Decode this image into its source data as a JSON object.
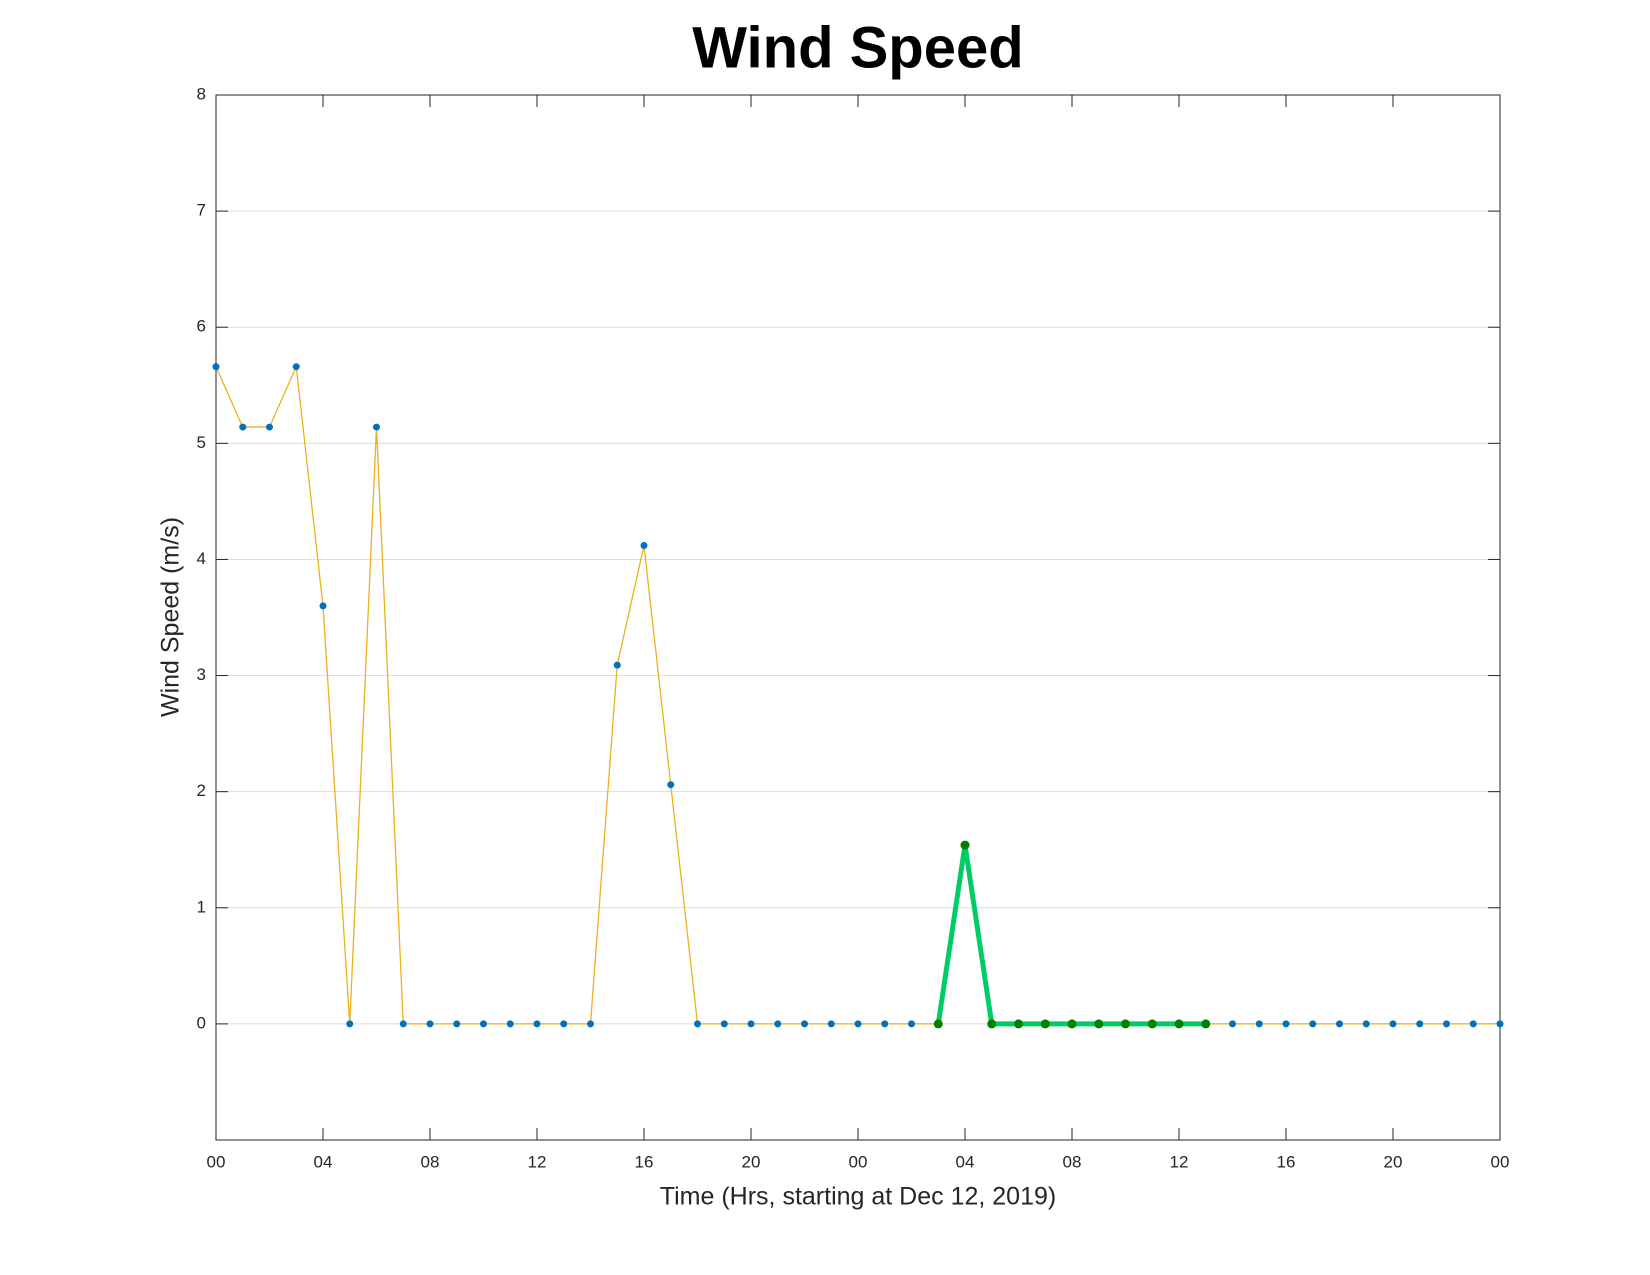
{
  "chart_data": {
    "type": "line",
    "title": "Wind Speed",
    "x_label": "Time (Hrs, starting at Dec 12, 2019)",
    "y_label": "Wind Speed (m/s)",
    "x": [
      0,
      1,
      2,
      3,
      4,
      5,
      6,
      7,
      8,
      9,
      10,
      11,
      12,
      13,
      14,
      15,
      16,
      17,
      18,
      19,
      20,
      21,
      22,
      23,
      24,
      25,
      26,
      27,
      28,
      29,
      30,
      31,
      32,
      33,
      34,
      35,
      36,
      37,
      38,
      39,
      40,
      41,
      42,
      43,
      44,
      45,
      46,
      47,
      48
    ],
    "series": [
      {
        "color": "#EDB120",
        "marker_color": "#0072BD",
        "values": [
          5.66,
          5.14,
          5.14,
          5.66,
          3.6,
          0,
          5.14,
          0,
          0,
          0,
          0,
          0,
          0,
          0,
          0,
          3.09,
          4.12,
          2.06,
          0,
          0,
          0,
          0,
          0,
          0,
          0,
          0,
          0,
          0,
          1.54,
          0,
          0,
          0,
          0,
          0,
          0,
          0,
          0,
          0,
          0,
          0,
          0,
          0,
          0,
          0,
          0,
          0,
          0,
          0,
          0
        ]
      },
      {
        "color": "#00CC66",
        "marker_color": "#008000",
        "values": [
          null,
          null,
          null,
          null,
          null,
          null,
          null,
          null,
          null,
          null,
          null,
          null,
          null,
          null,
          null,
          null,
          null,
          null,
          null,
          null,
          null,
          null,
          null,
          null,
          null,
          null,
          null,
          0,
          1.54,
          0,
          0,
          0,
          0,
          0,
          0,
          0,
          0,
          0,
          null,
          null,
          null,
          null,
          null,
          null,
          null,
          null,
          null,
          null,
          null
        ]
      }
    ],
    "xlim": [
      0,
      48
    ],
    "xticks": [
      {
        "value": 0,
        "label": "00"
      },
      {
        "value": 4,
        "label": "04"
      },
      {
        "value": 8,
        "label": "08"
      },
      {
        "value": 12,
        "label": "12"
      },
      {
        "value": 16,
        "label": "16"
      },
      {
        "value": 20,
        "label": "20"
      },
      {
        "value": 24,
        "label": "00"
      },
      {
        "value": 28,
        "label": "04"
      },
      {
        "value": 32,
        "label": "08"
      },
      {
        "value": 36,
        "label": "12"
      },
      {
        "value": 40,
        "label": "16"
      },
      {
        "value": 44,
        "label": "20"
      },
      {
        "value": 48,
        "label": "00"
      }
    ],
    "ylim": [
      -1,
      8
    ],
    "yticks": [
      0,
      1,
      2,
      3,
      4,
      5,
      6,
      7,
      8
    ],
    "grid": true
  }
}
